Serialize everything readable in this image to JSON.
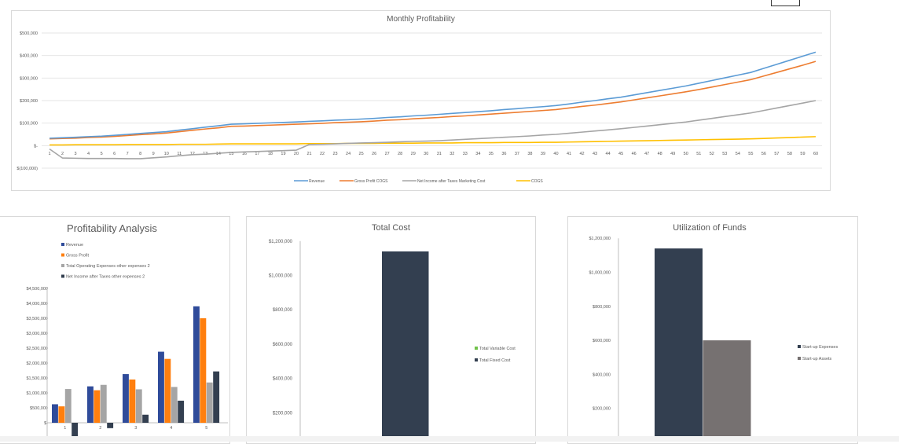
{
  "chart_data": [
    {
      "id": "monthly",
      "type": "line",
      "title": "Monthly Profitability",
      "x": [
        1,
        2,
        3,
        4,
        5,
        6,
        7,
        8,
        9,
        10,
        11,
        12,
        13,
        14,
        15,
        16,
        17,
        18,
        19,
        20,
        21,
        22,
        23,
        24,
        25,
        26,
        27,
        28,
        29,
        30,
        31,
        32,
        33,
        34,
        35,
        36,
        37,
        38,
        39,
        40,
        41,
        42,
        43,
        44,
        45,
        46,
        47,
        48,
        49,
        50,
        51,
        52,
        53,
        54,
        55,
        56,
        57,
        58,
        59,
        60
      ],
      "ylim": [
        -100000,
        500000
      ],
      "yticks": [
        500000,
        400000,
        300000,
        200000,
        100000,
        0,
        -100000
      ],
      "ytick_labels": [
        "$500,000",
        "$400,000",
        "$300,000",
        "$200,000",
        "$100,000",
        "$-",
        "$(100,000)"
      ],
      "grid": true,
      "legend": "bottom",
      "series": [
        {
          "name": "Revenue",
          "color": "#5B9BD5",
          "values": [
            33000,
            35000,
            37000,
            40000,
            42000,
            46000,
            50000,
            54000,
            58000,
            62000,
            69000,
            75000,
            82000,
            88000,
            95000,
            97000,
            99000,
            101000,
            103000,
            105000,
            108000,
            110000,
            113000,
            115000,
            118000,
            121000,
            125000,
            128000,
            132000,
            135000,
            139000,
            143000,
            147000,
            151000,
            155000,
            160000,
            164000,
            169000,
            173000,
            178000,
            185000,
            193000,
            200000,
            208000,
            215000,
            225000,
            235000,
            245000,
            255000,
            265000,
            277000,
            289000,
            301000,
            313000,
            325000,
            343000,
            361000,
            379000,
            397000,
            415000
          ]
        },
        {
          "name": "Gross Profit COGS",
          "color": "#ED7D31",
          "values": [
            30000,
            32000,
            33000,
            36000,
            38000,
            41000,
            45000,
            49000,
            52000,
            56000,
            62000,
            68000,
            74000,
            79000,
            86000,
            87000,
            89000,
            91000,
            93000,
            95000,
            97000,
            99000,
            102000,
            104000,
            106000,
            109000,
            113000,
            115000,
            119000,
            122000,
            125000,
            129000,
            132000,
            136000,
            140000,
            144000,
            148000,
            152000,
            156000,
            160000,
            167000,
            174000,
            180000,
            187000,
            194000,
            203000,
            212000,
            221000,
            230000,
            239000,
            249000,
            260000,
            271000,
            282000,
            293000,
            309000,
            325000,
            341000,
            357000,
            374000
          ]
        },
        {
          "name": "Net Income after Taxes Marketing Cost",
          "color": "#A5A5A5",
          "values": [
            -15000,
            -55000,
            -56000,
            -57000,
            -57000,
            -57000,
            -58000,
            -58000,
            -54000,
            -50000,
            -45000,
            -40000,
            -38000,
            -34000,
            -30000,
            -28000,
            -26000,
            -24000,
            -22000,
            -20000,
            5000,
            6000,
            8000,
            10000,
            12000,
            13000,
            15000,
            17000,
            19000,
            20000,
            22000,
            25000,
            28000,
            31000,
            34000,
            37000,
            40000,
            43000,
            47000,
            50000,
            55000,
            60000,
            65000,
            70000,
            75000,
            81000,
            87000,
            93000,
            99000,
            105000,
            113000,
            121000,
            129000,
            137000,
            145000,
            156000,
            167000,
            178000,
            189000,
            200000
          ]
        },
        {
          "name": "COGS",
          "color": "#FFC000",
          "values": [
            3000,
            3000,
            4000,
            4000,
            4000,
            4000,
            5000,
            5000,
            5000,
            5000,
            6000,
            6000,
            6000,
            7000,
            8000,
            8000,
            8000,
            8000,
            8000,
            8000,
            9000,
            9000,
            9000,
            10000,
            10000,
            10000,
            11000,
            11000,
            11000,
            12000,
            12000,
            12000,
            13000,
            13000,
            13000,
            14000,
            14000,
            14000,
            15000,
            15000,
            16000,
            17000,
            18000,
            19000,
            20000,
            21000,
            22000,
            23000,
            24000,
            25000,
            26000,
            27000,
            28000,
            29000,
            30000,
            32000,
            34000,
            36000,
            38000,
            40000
          ]
        }
      ]
    },
    {
      "id": "profitability",
      "type": "bar",
      "title": "Profitability Analysis",
      "categories": [
        "1",
        "2",
        "3",
        "4",
        "5"
      ],
      "ylim": [
        -500000,
        4500000
      ],
      "yticks": [
        4500000,
        4000000,
        3500000,
        3000000,
        2500000,
        2000000,
        1500000,
        1000000,
        500000,
        0,
        -500000
      ],
      "ytick_labels": [
        "$4,500,000",
        "$4,000,000",
        "$3,500,000",
        "$3,000,000",
        "$2,500,000",
        "$2,000,000",
        "$1,500,000",
        "$1,000,000",
        "$500,000",
        "$-",
        "$(500,000)"
      ],
      "grid": false,
      "legend": "top",
      "series": [
        {
          "name": "Revenue",
          "color": "#2F4B9A",
          "values": [
            620000,
            1220000,
            1630000,
            2380000,
            3900000
          ]
        },
        {
          "name": "Gross Profit",
          "color": "#FF7F0E",
          "values": [
            550000,
            1090000,
            1450000,
            2140000,
            3500000
          ]
        },
        {
          "name": "Total Operating Expenses other expenses 2",
          "color": "#A5A5A5",
          "values": [
            1130000,
            1270000,
            1120000,
            1200000,
            1350000
          ]
        },
        {
          "name": "Net Income after Taxes other expenses 2",
          "color": "#333F50",
          "values": [
            -500000,
            -180000,
            270000,
            740000,
            1720000
          ]
        }
      ]
    },
    {
      "id": "totalcost",
      "type": "bar",
      "title": "Total Cost",
      "categories": [
        ""
      ],
      "ylim": [
        0,
        1200000
      ],
      "yticks": [
        1200000,
        1000000,
        800000,
        600000,
        400000,
        200000
      ],
      "ytick_labels": [
        "$1,200,000",
        "$1,000,000",
        "$800,000",
        "$600,000",
        "$400,000",
        "$200,000"
      ],
      "grid": false,
      "legend": "right",
      "series": [
        {
          "name": "Total Variable Cost",
          "color": "#70C24A",
          "values": [
            5000
          ]
        },
        {
          "name": "Total Fixed Cost",
          "color": "#333F50",
          "values": [
            1140000
          ]
        }
      ]
    },
    {
      "id": "funds",
      "type": "bar",
      "title": "Utilization of Funds",
      "categories": [
        ""
      ],
      "ylim": [
        0,
        1200000
      ],
      "yticks": [
        1200000,
        1000000,
        800000,
        600000,
        400000,
        200000
      ],
      "ytick_labels": [
        "$1,200,000",
        "$1,000,000",
        "$800,000",
        "$600,000",
        "$400,000",
        "$200,000"
      ],
      "grid": false,
      "legend": "right",
      "series": [
        {
          "name": "Start-up Expenses",
          "color": "#333F50",
          "values": [
            1140000
          ]
        },
        {
          "name": "Start-up Assets",
          "color": "#767171",
          "values": [
            600000
          ]
        }
      ]
    }
  ]
}
